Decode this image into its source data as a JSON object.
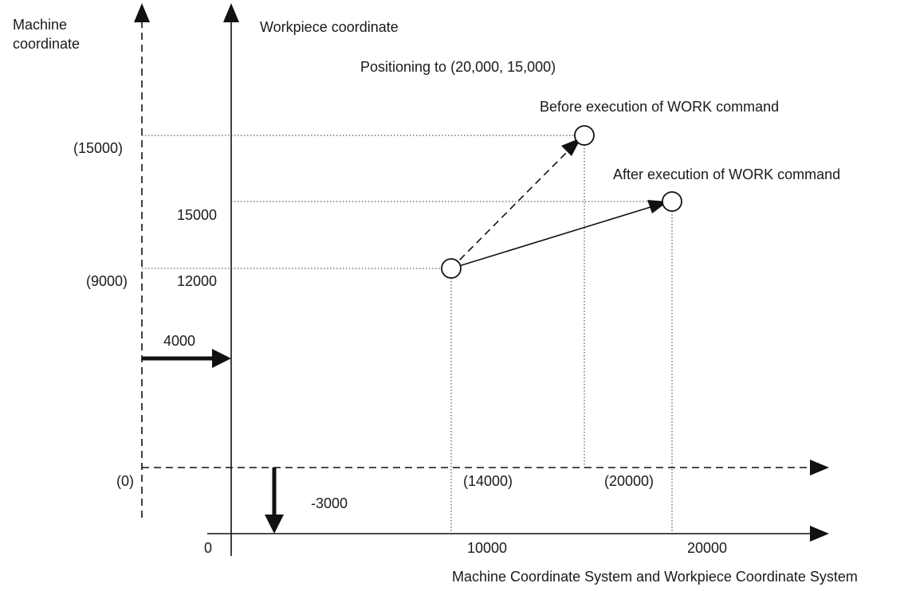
{
  "labels": {
    "machine_axis": [
      "Machine",
      "coordinate"
    ],
    "workpiece_axis": "Workpiece coordinate",
    "positioning": "Positioning to (20,000, 15,000)",
    "before": "Before execution of WORK command",
    "after": "After execution of WORK command",
    "m_y_15000": "(15000)",
    "m_y_9000": "(9000)",
    "w_y_15000": "15000",
    "w_y_12000": "12000",
    "offset_x": "4000",
    "offset_y": "-3000",
    "m_origin": "(0)",
    "w_origin": "0",
    "m_x_14000": "(14000)",
    "m_x_20000": "(20000)",
    "w_x_10000": "10000",
    "w_x_20000": "20000",
    "caption": "Machine Coordinate System and Workpiece Coordinate System"
  }
}
